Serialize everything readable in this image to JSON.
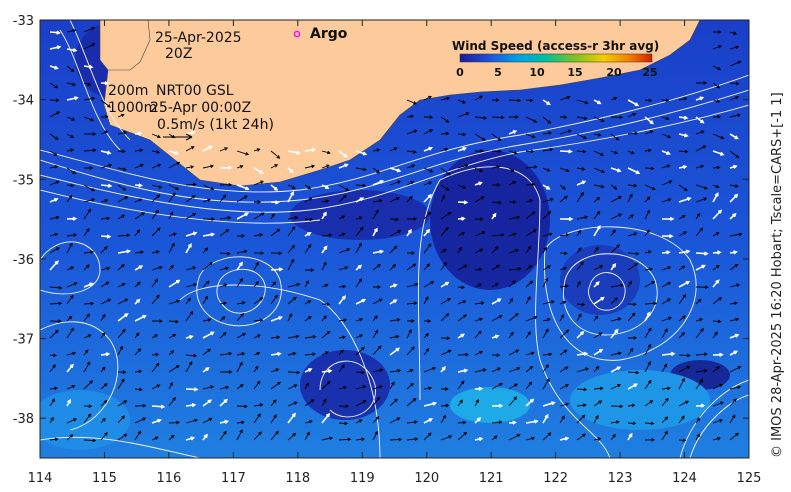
{
  "map": {
    "date_line1": "25-Apr-2025",
    "date_line2": "20Z",
    "depth_line1": "200m",
    "depth_line2": "1000m",
    "product": "NRT00 GSL",
    "product_time": "25-Apr 00:00Z",
    "vector_scale": "0.5m/s (1kt 24h)",
    "argo_label": "Argo",
    "lon_ticks": [
      "114",
      "115",
      "116",
      "117",
      "118",
      "119",
      "120",
      "121",
      "122",
      "123",
      "124",
      "125"
    ],
    "lat_ticks": [
      "-33",
      "-34",
      "-35",
      "-36",
      "-37",
      "-38"
    ],
    "lon_range": [
      114,
      125
    ],
    "lat_range": [
      -38.5,
      -33
    ]
  },
  "legend": {
    "title": "Wind Speed (access-r 3hr avg)",
    "ticks": [
      "0",
      "5",
      "10",
      "15",
      "20",
      "25"
    ],
    "colors": [
      "#1a1a9a",
      "#1f4fd8",
      "#00a0e6",
      "#00c0a0",
      "#80c020",
      "#f0d000",
      "#f08000",
      "#d02000"
    ]
  },
  "credit": "© IMOS 28-Apr-2025 16:20 Hobart; Tscale=CARS+[-1 1]",
  "colors": {
    "land": "#fdcb9b",
    "sea_deep": "#1a2aa0",
    "sea_mid": "#1a55d8",
    "sea_light": "#1f8ee8",
    "argo": "#ff00ff"
  }
}
